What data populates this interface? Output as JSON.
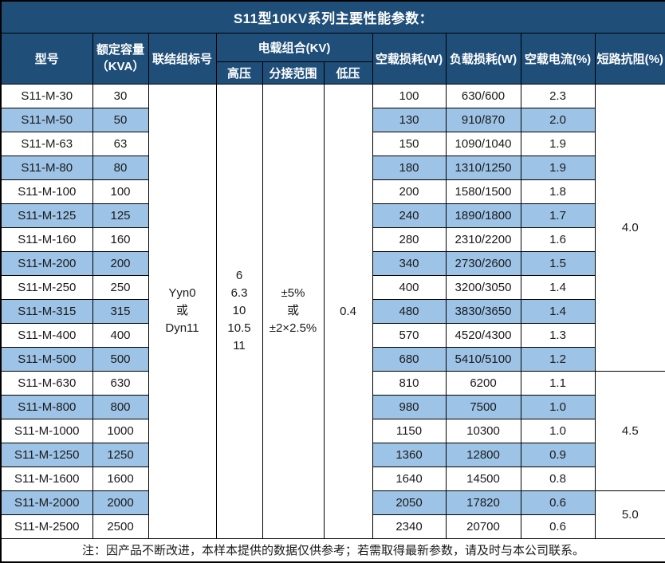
{
  "title": "S11型10KV系列主要性能参数：",
  "colors": {
    "header_blue": "#1F4E79",
    "stripe_blue": "#9DC3E6",
    "border": "#000000"
  },
  "table": {
    "headers": {
      "model": "型号",
      "capacity_line1": "额定容量",
      "capacity_line2": "（KVA）",
      "vector_group": "联结组标号",
      "voltage_combo": "电载组合(KV)",
      "hv": "高压",
      "tap_range": "分接范围",
      "lv": "低压",
      "no_load_loss": "空载损耗(W)",
      "load_loss": "负载损耗(W)",
      "no_load_current": "空载电流(%)",
      "impedance": "短路抗阻(%)"
    },
    "merged": {
      "vector_group": [
        "Yyn0",
        "或",
        "Dyn11"
      ],
      "hv": [
        "6",
        "6.3",
        "10",
        "10.5",
        "11"
      ],
      "tap_range": [
        "±5%",
        "或",
        "±2×2.5%"
      ],
      "lv": "0.4"
    },
    "rows": [
      {
        "model": "S11-M-30",
        "capacity": "30",
        "no_load_loss": "100",
        "load_loss": "630/600",
        "no_load_current": "2.3"
      },
      {
        "model": "S11-M-50",
        "capacity": "50",
        "no_load_loss": "130",
        "load_loss": "910/870",
        "no_load_current": "2.0"
      },
      {
        "model": "S11-M-63",
        "capacity": "63",
        "no_load_loss": "150",
        "load_loss": "1090/1040",
        "no_load_current": "1.9"
      },
      {
        "model": "S11-M-80",
        "capacity": "80",
        "no_load_loss": "180",
        "load_loss": "1310/1250",
        "no_load_current": "1.9"
      },
      {
        "model": "S11-M-100",
        "capacity": "100",
        "no_load_loss": "200",
        "load_loss": "1580/1500",
        "no_load_current": "1.8"
      },
      {
        "model": "S11-M-125",
        "capacity": "125",
        "no_load_loss": "240",
        "load_loss": "1890/1800",
        "no_load_current": "1.7"
      },
      {
        "model": "S11-M-160",
        "capacity": "160",
        "no_load_loss": "280",
        "load_loss": "2310/2200",
        "no_load_current": "1.6"
      },
      {
        "model": "S11-M-200",
        "capacity": "200",
        "no_load_loss": "340",
        "load_loss": "2730/2600",
        "no_load_current": "1.5"
      },
      {
        "model": "S11-M-250",
        "capacity": "250",
        "no_load_loss": "400",
        "load_loss": "3200/3050",
        "no_load_current": "1.4"
      },
      {
        "model": "S11-M-315",
        "capacity": "315",
        "no_load_loss": "480",
        "load_loss": "3830/3650",
        "no_load_current": "1.4"
      },
      {
        "model": "S11-M-400",
        "capacity": "400",
        "no_load_loss": "570",
        "load_loss": "4520/4300",
        "no_load_current": "1.3"
      },
      {
        "model": "S11-M-500",
        "capacity": "500",
        "no_load_loss": "680",
        "load_loss": "5410/5100",
        "no_load_current": "1.2"
      },
      {
        "model": "S11-M-630",
        "capacity": "630",
        "no_load_loss": "810",
        "load_loss": "6200",
        "no_load_current": "1.1"
      },
      {
        "model": "S11-M-800",
        "capacity": "800",
        "no_load_loss": "980",
        "load_loss": "7500",
        "no_load_current": "1.0"
      },
      {
        "model": "S11-M-1000",
        "capacity": "1000",
        "no_load_loss": "1150",
        "load_loss": "10300",
        "no_load_current": "1.0"
      },
      {
        "model": "S11-M-1250",
        "capacity": "1250",
        "no_load_loss": "1360",
        "load_loss": "12800",
        "no_load_current": "0.9"
      },
      {
        "model": "S11-M-1600",
        "capacity": "1600",
        "no_load_loss": "1640",
        "load_loss": "14500",
        "no_load_current": "0.8"
      },
      {
        "model": "S11-M-2000",
        "capacity": "2000",
        "no_load_loss": "2050",
        "load_loss": "17820",
        "no_load_current": "0.6"
      },
      {
        "model": "S11-M-2500",
        "capacity": "2500",
        "no_load_loss": "2340",
        "load_loss": "20700",
        "no_load_current": "0.6"
      }
    ],
    "impedance_groups": [
      {
        "value": "4.0",
        "rows": 12
      },
      {
        "value": "4.5",
        "rows": 5
      },
      {
        "value": "5.0",
        "rows": 2
      }
    ]
  },
  "footer_note": "注：因产品不断改进，本样本提供的数据仅供参考；若需取得最新参数，请及时与本公司联系。"
}
